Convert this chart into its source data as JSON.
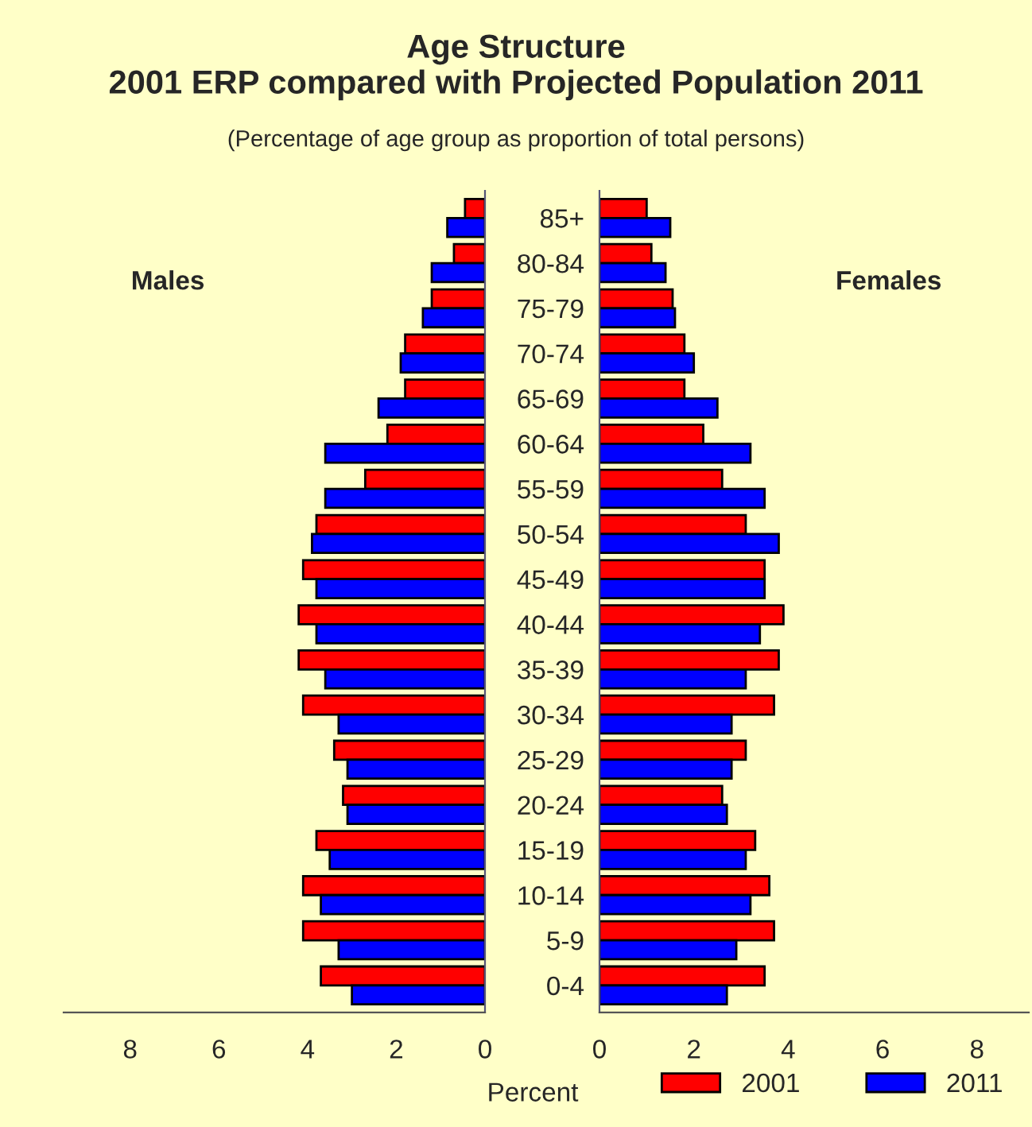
{
  "chart_data": [
    {
      "type": "bar",
      "orientation": "horizontal",
      "title": "Age Structure\n2001 ERP compared with Projected Population 2011",
      "subtitle": "(Percentage of age group as proportion of total persons)",
      "annotations": [
        "Males"
      ],
      "categories": [
        "85+",
        "80-84",
        "75-79",
        "70-74",
        "65-69",
        "60-64",
        "55-59",
        "50-54",
        "45-49",
        "40-44",
        "35-39",
        "30-34",
        "25-29",
        "20-24",
        "15-19",
        "10-14",
        "5-9",
        "0-4"
      ],
      "series": [
        {
          "name": "2001",
          "color": "#ff0000",
          "values": [
            0.45,
            0.7,
            1.2,
            1.8,
            1.8,
            2.2,
            2.7,
            3.8,
            4.1,
            4.2,
            4.2,
            4.1,
            3.4,
            3.2,
            3.8,
            4.1,
            4.1,
            3.7
          ]
        },
        {
          "name": "2011",
          "color": "#0000ff",
          "values": [
            0.85,
            1.2,
            1.4,
            1.9,
            2.4,
            3.6,
            3.6,
            3.9,
            3.8,
            3.8,
            3.6,
            3.3,
            3.1,
            3.1,
            3.5,
            3.7,
            3.3,
            3.0
          ]
        }
      ],
      "xlim": [
        9.5,
        0
      ],
      "xticks": [
        8,
        6,
        4,
        2,
        0
      ],
      "legend": "bottom right"
    },
    {
      "type": "bar",
      "orientation": "horizontal",
      "xlabel": "Percent",
      "annotations": [
        "Females"
      ],
      "categories": [
        null,
        null,
        null,
        null,
        null,
        null,
        null,
        null,
        null,
        null,
        null,
        null,
        null,
        null,
        null,
        null,
        null,
        null
      ],
      "series": [
        {
          "color": "#ff0000",
          "values": [
            1.0,
            1.1,
            1.55,
            1.8,
            1.8,
            2.2,
            2.6,
            3.1,
            3.5,
            3.9,
            3.8,
            3.7,
            3.1,
            2.6,
            3.3,
            3.6,
            3.7,
            3.5
          ]
        },
        {
          "color": "#0000ff",
          "values": [
            1.5,
            1.4,
            1.6,
            2.0,
            2.5,
            3.2,
            3.5,
            3.8,
            3.5,
            3.4,
            3.1,
            2.8,
            2.8,
            2.7,
            3.1,
            3.2,
            2.9,
            2.7
          ]
        }
      ],
      "xlim": [
        0,
        9.1
      ],
      "xticks": [
        0,
        2,
        4,
        6,
        8
      ],
      "tick_labels": "x"
    }
  ]
}
